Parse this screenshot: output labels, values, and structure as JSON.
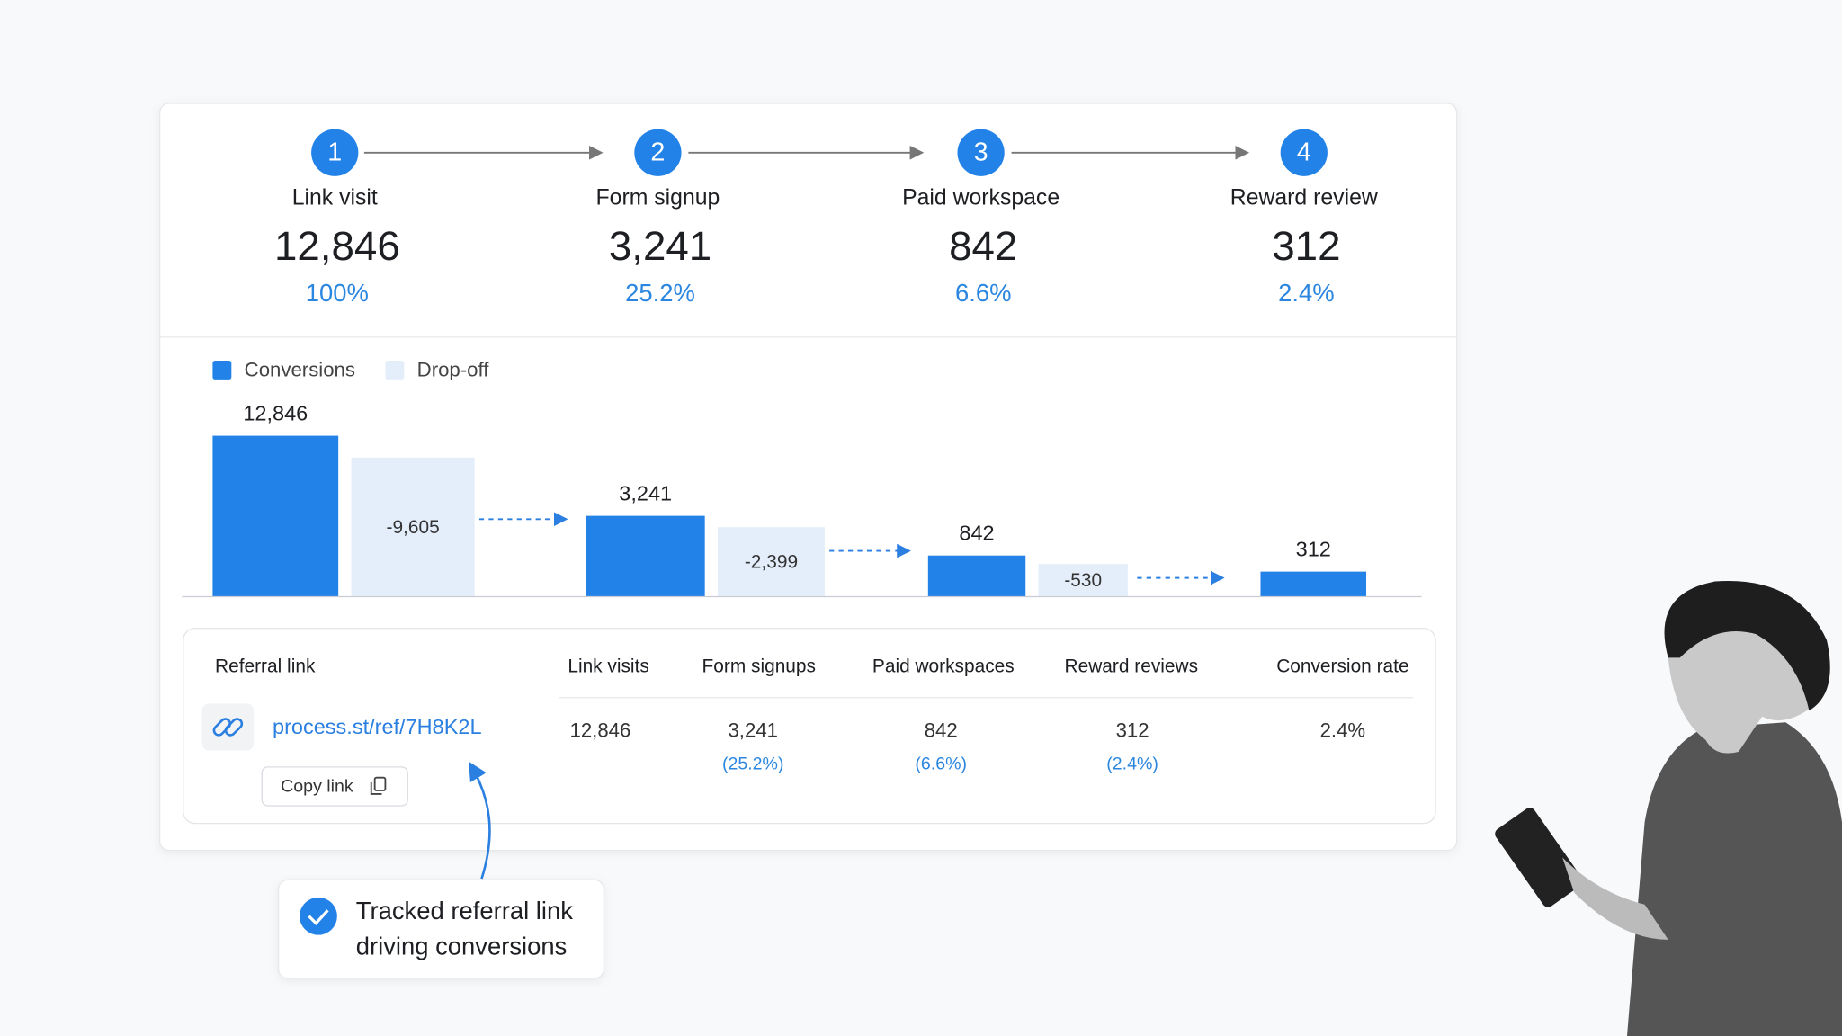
{
  "steps": [
    {
      "number": "1",
      "label": "Link visit",
      "value": "12,846",
      "percent": "100%"
    },
    {
      "number": "2",
      "label": "Form signup",
      "value": "3,241",
      "percent": "25.2%"
    },
    {
      "number": "3",
      "label": "Paid workspace",
      "value": "842",
      "percent": "6.6%"
    },
    {
      "number": "4",
      "label": "Reward review",
      "value": "312",
      "percent": "2.4%"
    }
  ],
  "chart": {
    "type": "waterfall",
    "scale": "sqrt",
    "series": [
      {
        "name": "Conversions",
        "color": "#2282e8",
        "values": [
          12846,
          3241,
          842,
          312
        ],
        "value_labels": [
          "12,846",
          "3,241",
          "842",
          "312"
        ]
      },
      {
        "name": "Drop-off",
        "color": "#e4eefb",
        "values": [
          -9605,
          -2399,
          -530
        ],
        "value_labels": [
          "-9,605",
          "-2,399",
          "-530"
        ]
      }
    ]
  },
  "table": {
    "headers": [
      "Referral link",
      "Link visits",
      "Form signups",
      "Paid workspaces",
      "Reward reviews",
      "Conversion rate"
    ],
    "link": "process.st/ref/7H8K2L",
    "copy_button": "Copy link",
    "values": [
      "12,846",
      "3,241",
      "842",
      "312",
      "2.4%"
    ],
    "shares": [
      "(25.2%)",
      "(6.6%)",
      "(2.4%)"
    ]
  },
  "callout": [
    "Tracked referral link",
    "driving conversions"
  ]
}
